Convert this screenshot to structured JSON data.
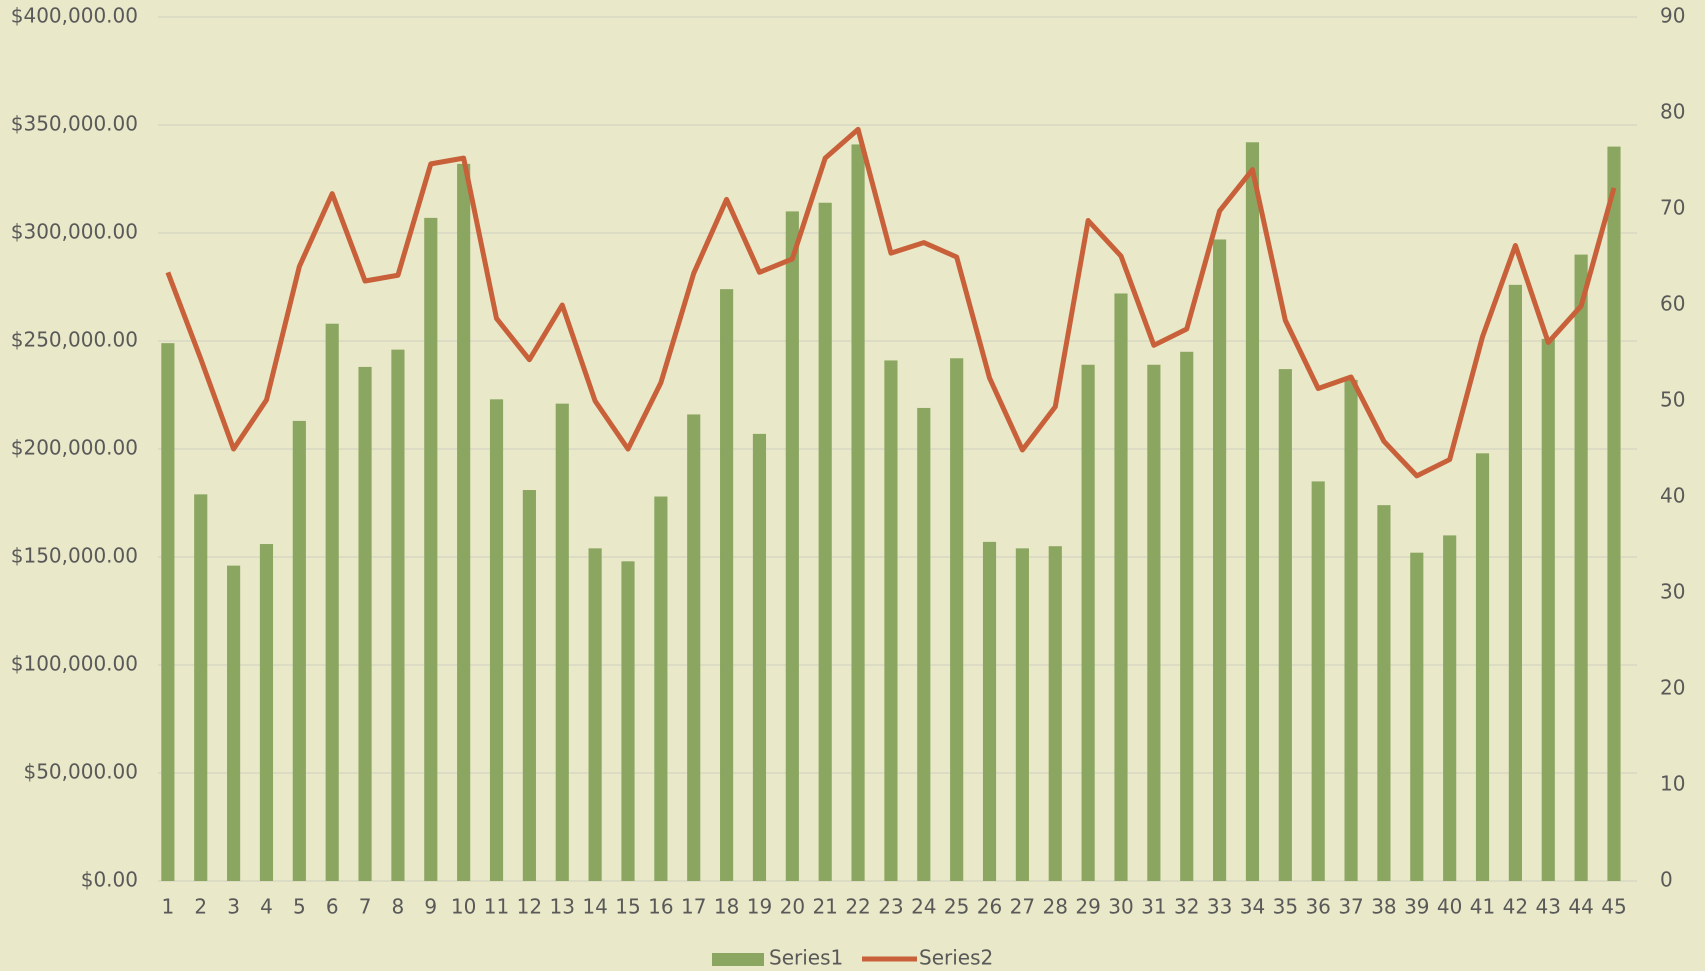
{
  "chart_data": {
    "type": "bar-line",
    "categories": [
      1,
      2,
      3,
      4,
      5,
      6,
      7,
      8,
      9,
      10,
      11,
      12,
      13,
      14,
      15,
      16,
      17,
      18,
      19,
      20,
      21,
      22,
      23,
      24,
      25,
      26,
      27,
      28,
      29,
      30,
      31,
      32,
      33,
      34,
      35,
      36,
      37,
      38,
      39,
      40,
      41,
      42,
      43,
      44,
      45
    ],
    "series": [
      {
        "name": "Series1",
        "type": "bar",
        "color": "#8ba661",
        "values": [
          249000,
          179000,
          146000,
          156000,
          213000,
          258000,
          238000,
          246000,
          307000,
          332000,
          223000,
          181000,
          221000,
          154000,
          148000,
          178000,
          216000,
          274000,
          207000,
          310000,
          314000,
          341000,
          241000,
          219000,
          242000,
          157000,
          154000,
          155000,
          239000,
          272000,
          239000,
          245000,
          297000,
          342000,
          237000,
          185000,
          232000,
          174000,
          152000,
          160000,
          198000,
          276000,
          251000,
          290000,
          340000
        ]
      },
      {
        "name": "Series2",
        "type": "line",
        "axis": "y2",
        "color": "#c8603a",
        "values": [
          63.4,
          54.4,
          45,
          50.1,
          64,
          71.6,
          62.5,
          63.1,
          74.7,
          75.3,
          58.6,
          54.3,
          60,
          50,
          45,
          51.9,
          63.3,
          71,
          63.4,
          64.8,
          75.3,
          78.3,
          65.4,
          66.5,
          65,
          52.4,
          44.9,
          49.4,
          68.8,
          65.1,
          55.8,
          57.5,
          69.8,
          74.1,
          58.4,
          51.3,
          52.5,
          45.8,
          42.2,
          43.9,
          56.7,
          66.2,
          56.1,
          59.9,
          72.2
        ]
      }
    ],
    "ylim": [
      0,
      400000
    ],
    "yticks": [
      {
        "value": 0,
        "label": "$0.00"
      },
      {
        "value": 50000,
        "label": "$50,000.00"
      },
      {
        "value": 100000,
        "label": "$100,000.00"
      },
      {
        "value": 150000,
        "label": "$150,000.00"
      },
      {
        "value": 200000,
        "label": "$200,000.00"
      },
      {
        "value": 250000,
        "label": "$250,000.00"
      },
      {
        "value": 300000,
        "label": "$300,000.00"
      },
      {
        "value": 350000,
        "label": "$350,000.00"
      },
      {
        "value": 400000,
        "label": "$400,000.00"
      }
    ],
    "y2lim": [
      0,
      90
    ],
    "y2ticks": [
      0,
      10,
      20,
      30,
      40,
      50,
      60,
      70,
      80,
      90
    ],
    "grid": true,
    "legend": "bottom"
  }
}
